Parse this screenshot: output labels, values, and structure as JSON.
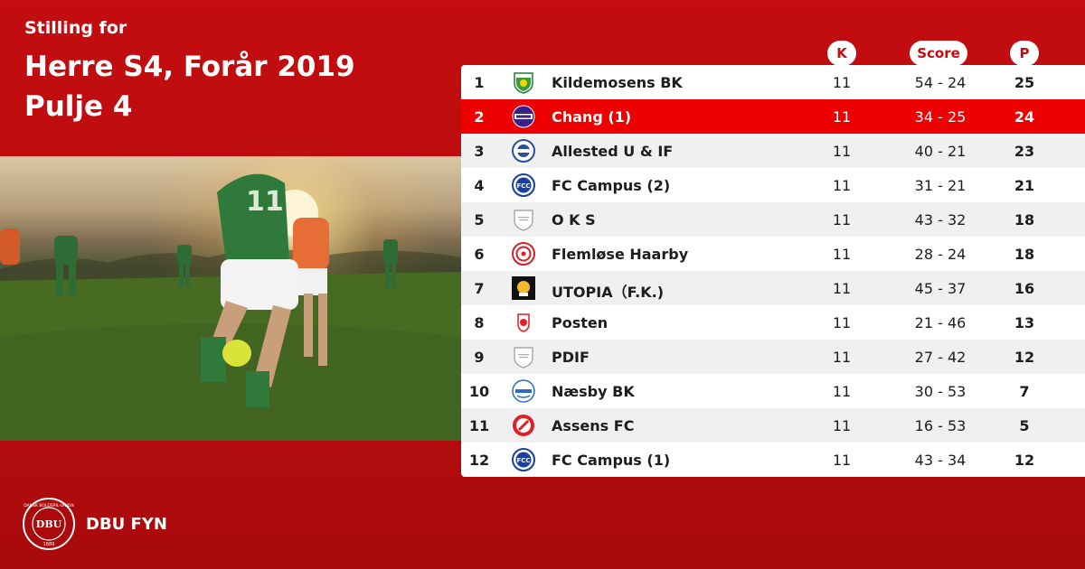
{
  "header": {
    "subtitle": "Stilling for",
    "title_line1": "Herre S4, Forår 2019",
    "title_line2": "Pulje 4"
  },
  "columns": {
    "played": "K",
    "score": "Score",
    "points": "P"
  },
  "standings": [
    {
      "pos": "1",
      "team": "Kildemosens BK",
      "played": "11",
      "score": "54 - 24",
      "points": "25",
      "crest": "kildemosens-crest-icon"
    },
    {
      "pos": "2",
      "team": "Chang (1)",
      "played": "11",
      "score": "34 - 25",
      "points": "24",
      "crest": "chang-crest-icon",
      "highlight": true
    },
    {
      "pos": "3",
      "team": "Allested U & IF",
      "played": "11",
      "score": "40 - 21",
      "points": "23",
      "crest": "allested-crest-icon"
    },
    {
      "pos": "4",
      "team": "FC Campus (2)",
      "played": "11",
      "score": "31 - 21",
      "points": "21",
      "crest": "fc-campus-crest-icon"
    },
    {
      "pos": "5",
      "team": "O K S",
      "played": "11",
      "score": "43 - 32",
      "points": "18",
      "crest": "placeholder-crest-icon"
    },
    {
      "pos": "6",
      "team": "Flemløse Haarby",
      "played": "11",
      "score": "28 - 24",
      "points": "18",
      "crest": "flemlose-crest-icon"
    },
    {
      "pos": "7",
      "team": "UTOPIA（F.K.)",
      "played": "11",
      "score": "45 - 37",
      "points": "16",
      "crest": "utopia-crest-icon"
    },
    {
      "pos": "8",
      "team": "Posten",
      "played": "11",
      "score": "21 - 46",
      "points": "13",
      "crest": "posten-crest-icon"
    },
    {
      "pos": "9",
      "team": "PDIF",
      "played": "11",
      "score": "27 - 42",
      "points": "12",
      "crest": "placeholder-crest-icon"
    },
    {
      "pos": "10",
      "team": "Næsby BK",
      "played": "11",
      "score": "30 - 53",
      "points": "7",
      "crest": "naesby-crest-icon"
    },
    {
      "pos": "11",
      "team": "Assens FC",
      "played": "11",
      "score": "16 - 53",
      "points": "5",
      "crest": "assens-crest-icon"
    },
    {
      "pos": "12",
      "team": "FC Campus (1)",
      "played": "11",
      "score": "43 - 34",
      "points": "12",
      "crest": "fc-campus-crest-icon"
    }
  ],
  "footer": {
    "seal_text": "DANSK BOLDSPIL-UNION 1889",
    "seal_initials": "DBU",
    "brand": "DBU FYN"
  },
  "colors": {
    "background": "#c30d10",
    "highlight_row": "#ee0000",
    "shade_row": "#f0f0f0",
    "text_dark": "#1d1d1d"
  }
}
